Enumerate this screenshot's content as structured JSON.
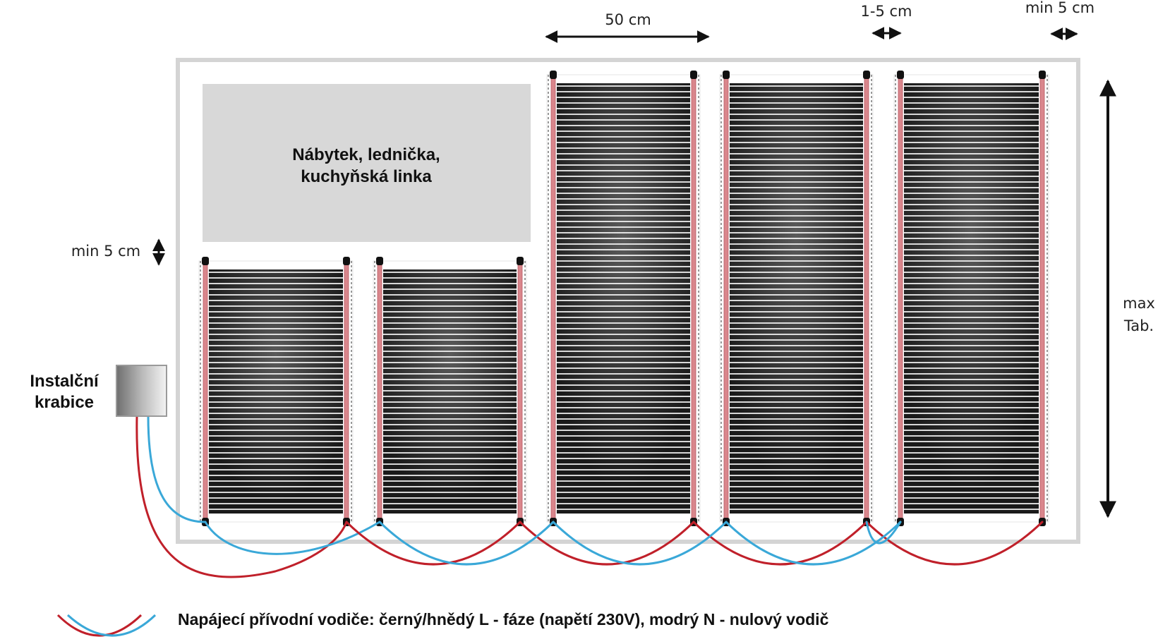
{
  "furniture": {
    "line1": "Nábytek,  lednička,",
    "line2": "kuchyňská linka"
  },
  "install_box": {
    "line1": "Instalční",
    "line2": "krabice"
  },
  "dimensions": {
    "top_width": "50 cm",
    "gap_between": "1-5 cm",
    "edge_gap_right": "min 5 cm",
    "edge_gap_furniture": "min 5 cm",
    "height_line1": "max",
    "height_line2": "Tab."
  },
  "legend": {
    "text": "Napájecí přívodní vodiče: černý/hnědý L  - fáze (napětí 230V), modrý N - nulový vodič"
  },
  "colors": {
    "phase_wire": "#c0202a",
    "neutral_wire": "#3aa8d8",
    "film": "#1a1a1a",
    "electrode_stripe": "#d9868c",
    "furniture_fill": "#d8d8d8",
    "room_outline": "#d0d0d0"
  }
}
